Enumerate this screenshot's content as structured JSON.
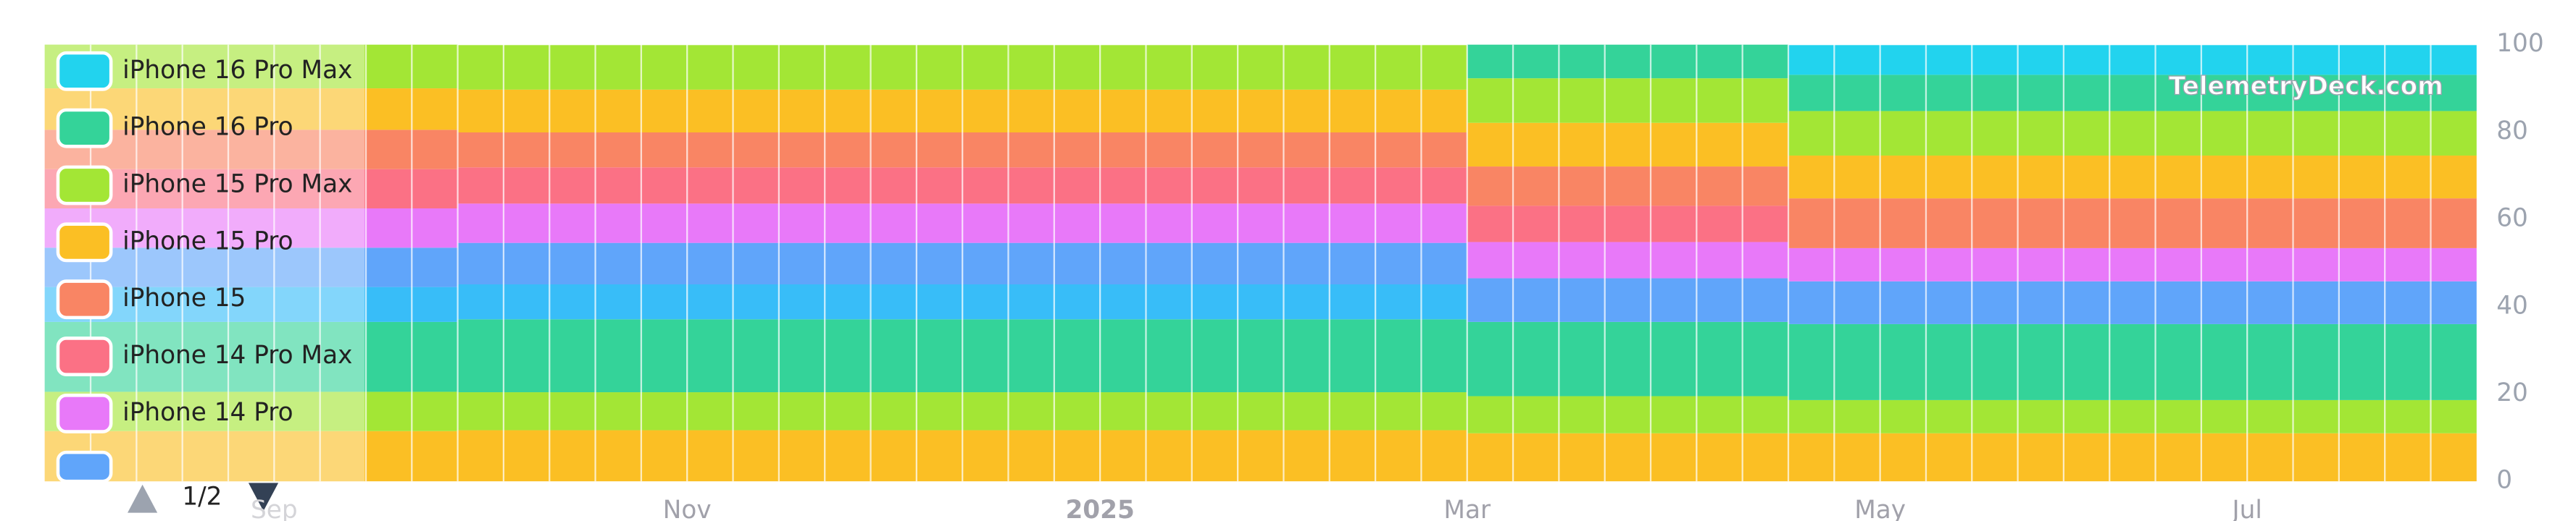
{
  "chart_data": {
    "type": "stacked-bar",
    "watermark": "TelemetryDeck.com",
    "pager": "1/2",
    "categories": [
      null,
      null,
      null,
      null,
      null,
      "Sep",
      null,
      null,
      null,
      null,
      null,
      null,
      null,
      null,
      "Nov",
      null,
      null,
      null,
      null,
      null,
      null,
      null,
      null,
      "2025",
      null,
      null,
      null,
      null,
      null,
      null,
      null,
      "Mar",
      null,
      null,
      null,
      null,
      null,
      null,
      null,
      null,
      "May",
      null,
      null,
      null,
      null,
      null,
      null,
      null,
      "Jul",
      null,
      null,
      null,
      null
    ],
    "ylim": [
      0,
      100
    ],
    "yticks": [
      0,
      20,
      40,
      60,
      80,
      100
    ],
    "series": [
      {
        "name": "iPhone 16 Pro Max",
        "color": "#22d3ee",
        "values": [
          0,
          0,
          0,
          0,
          0,
          0,
          0,
          0,
          0,
          0,
          0,
          0,
          0,
          0,
          0,
          0,
          0,
          0,
          0,
          0,
          0,
          0,
          0,
          0,
          0,
          0,
          0,
          0,
          0,
          0,
          0,
          0,
          0,
          0,
          0,
          0,
          0,
          0,
          6.8,
          6.8,
          6.8,
          6.8,
          6.8,
          6.8,
          6.8,
          6.8,
          6.8,
          6.8,
          6.8,
          6.8,
          6.8,
          6.8,
          6.8
        ]
      },
      {
        "name": "iPhone 16 Pro",
        "color": "#34d399",
        "values": [
          0,
          0,
          0,
          0,
          0,
          0,
          0,
          0,
          0,
          0,
          0,
          0,
          0,
          0,
          0,
          0,
          0,
          0,
          0,
          0,
          0,
          0,
          0,
          0,
          0,
          0,
          0,
          0,
          0,
          0,
          0,
          7.7,
          7.7,
          7.7,
          7.7,
          7.7,
          7.7,
          7.7,
          8.3,
          8.3,
          8.3,
          8.3,
          8.3,
          8.3,
          8.3,
          8.3,
          8.3,
          8.3,
          8.3,
          8.3,
          8.3,
          8.3,
          8.3
        ]
      },
      {
        "name": "iPhone 15 Pro Max",
        "color": "#a3e635",
        "values": [
          10,
          10,
          10,
          10,
          10,
          10,
          10,
          10,
          10,
          10.2,
          10.2,
          10.2,
          10.2,
          10.2,
          10.2,
          10.2,
          10.2,
          10.2,
          10.2,
          10.2,
          10.2,
          10.2,
          10.2,
          10.2,
          10.2,
          10.2,
          10.2,
          10.2,
          10.2,
          10.2,
          10.2,
          10.2,
          10.2,
          10.2,
          10.2,
          10.2,
          10.2,
          10.2,
          10.2,
          10.2,
          10.2,
          10.2,
          10.2,
          10.2,
          10.2,
          10.2,
          10.2,
          10.2,
          10.2,
          10.2,
          10.2,
          10.2,
          10.2
        ]
      },
      {
        "name": "iPhone 15 Pro",
        "color": "#fbbf24",
        "values": [
          9.5,
          9.5,
          9.5,
          9.5,
          9.5,
          9.5,
          9.5,
          9.5,
          9.5,
          9.8,
          9.8,
          9.8,
          9.8,
          9.8,
          9.8,
          9.8,
          9.8,
          9.8,
          9.8,
          9.8,
          9.8,
          9.8,
          9.8,
          9.8,
          9.8,
          9.8,
          9.8,
          9.8,
          9.8,
          9.8,
          9.8,
          10,
          10,
          10,
          10,
          10,
          10,
          10,
          9.8,
          9.8,
          9.8,
          9.8,
          9.8,
          9.8,
          9.8,
          9.8,
          9.8,
          9.8,
          9.8,
          9.8,
          9.8,
          9.8,
          9.8
        ]
      },
      {
        "name": "iPhone 15",
        "color": "#f98564",
        "values": [
          9,
          9,
          9,
          9,
          9,
          9,
          9,
          9,
          9,
          8,
          8,
          8,
          8,
          8,
          8,
          8,
          8,
          8,
          8,
          8,
          8,
          8,
          8,
          8,
          8,
          8,
          8,
          8,
          8,
          8,
          8,
          9,
          9,
          9,
          9,
          9,
          9,
          9,
          11.4,
          11.4,
          11.4,
          11.4,
          11.4,
          11.4,
          11.4,
          11.4,
          11.4,
          11.4,
          11.4,
          11.4,
          11.4,
          11.4,
          11.4
        ]
      },
      {
        "name": "iPhone 14 Pro Max",
        "color": "#fb7185",
        "values": [
          9,
          9,
          9,
          9,
          9,
          9,
          9,
          9,
          9,
          8.3,
          8.3,
          8.3,
          8.3,
          8.3,
          8.3,
          8.3,
          8.3,
          8.3,
          8.3,
          8.3,
          8.3,
          8.3,
          8.3,
          8.3,
          8.3,
          8.3,
          8.3,
          8.3,
          8.3,
          8.3,
          8.3,
          8.3,
          8.3,
          8.3,
          8.3,
          8.3,
          8.3,
          8.3,
          0,
          0,
          0,
          0,
          0,
          0,
          0,
          0,
          0,
          0,
          0,
          0,
          0,
          0,
          0
        ]
      },
      {
        "name": "iPhone 14 Pro",
        "color": "#e879f9",
        "values": [
          9,
          9,
          9,
          9,
          9,
          9,
          9,
          9,
          9,
          9,
          9,
          9,
          9,
          9,
          9,
          9,
          9,
          9,
          9,
          9,
          9,
          9,
          9,
          9,
          9,
          9,
          9,
          9,
          9,
          9,
          9,
          8.3,
          8.3,
          8.3,
          8.3,
          8.3,
          8.3,
          8.3,
          7.6,
          7.6,
          7.6,
          7.6,
          7.6,
          7.6,
          7.6,
          7.6,
          7.6,
          7.6,
          7.6,
          7.6,
          7.6,
          7.6,
          7.6
        ]
      },
      {
        "color": "#60a5fa",
        "values": [
          9,
          9,
          9,
          9,
          9,
          9,
          9,
          9,
          9,
          9.5,
          9.5,
          9.5,
          9.5,
          9.5,
          9.5,
          9.5,
          9.5,
          9.5,
          9.5,
          9.5,
          9.5,
          9.5,
          9.5,
          9.5,
          9.5,
          9.5,
          9.5,
          9.5,
          9.5,
          9.5,
          9.5,
          10,
          10,
          10,
          10,
          10,
          10,
          10,
          9.8,
          9.8,
          9.8,
          9.8,
          9.8,
          9.8,
          9.8,
          9.8,
          9.8,
          9.8,
          9.8,
          9.8,
          9.8,
          9.8,
          9.8
        ]
      },
      {
        "color": "#38bdf8",
        "values": [
          8,
          8,
          8,
          8,
          8,
          8,
          8,
          8,
          8,
          8,
          8,
          8,
          8,
          8,
          8,
          8,
          8,
          8,
          8,
          8,
          8,
          8,
          8,
          8,
          8,
          8,
          8,
          8,
          8,
          8,
          8,
          0,
          0,
          0,
          0,
          0,
          0,
          0,
          0,
          0,
          0,
          0,
          0,
          0,
          0,
          0,
          0,
          0,
          0,
          0,
          0,
          0,
          0
        ]
      },
      {
        "color": "#34d399",
        "values": [
          16,
          16,
          16,
          16,
          16,
          16,
          16,
          16,
          16,
          16.7,
          16.7,
          16.7,
          16.7,
          16.7,
          16.7,
          16.7,
          16.7,
          16.7,
          16.7,
          16.7,
          16.7,
          16.7,
          16.7,
          16.7,
          16.7,
          16.7,
          16.7,
          16.7,
          16.7,
          16.7,
          16.7,
          17,
          17,
          17,
          17,
          17,
          17,
          17,
          17.4,
          17.4,
          17.4,
          17.4,
          17.4,
          17.4,
          17.4,
          17.4,
          17.4,
          17.4,
          17.4,
          17.4,
          17.4,
          17.4,
          17.4
        ]
      },
      {
        "color": "#a3e635",
        "values": [
          9,
          9,
          9,
          9,
          9,
          9,
          9,
          9,
          9,
          8.7,
          8.7,
          8.7,
          8.7,
          8.7,
          8.7,
          8.7,
          8.7,
          8.7,
          8.7,
          8.7,
          8.7,
          8.7,
          8.7,
          8.7,
          8.7,
          8.7,
          8.7,
          8.7,
          8.7,
          8.7,
          8.7,
          8.5,
          8.5,
          8.5,
          8.5,
          8.5,
          8.5,
          8.5,
          7.6,
          7.6,
          7.6,
          7.6,
          7.6,
          7.6,
          7.6,
          7.6,
          7.6,
          7.6,
          7.6,
          7.6,
          7.6,
          7.6,
          7.6
        ]
      },
      {
        "color": "#fbbf24",
        "values": [
          11.5,
          11.5,
          11.5,
          11.5,
          11.5,
          11.5,
          11.5,
          11.5,
          11.5,
          11.7,
          11.7,
          11.7,
          11.7,
          11.7,
          11.7,
          11.7,
          11.7,
          11.7,
          11.7,
          11.7,
          11.7,
          11.7,
          11.7,
          11.7,
          11.7,
          11.7,
          11.7,
          11.7,
          11.7,
          11.7,
          11.7,
          11,
          11,
          11,
          11,
          11,
          11,
          11,
          11,
          11,
          11,
          11,
          11,
          11,
          11,
          11,
          11,
          11,
          11,
          11,
          11,
          11,
          11
        ]
      }
    ]
  }
}
